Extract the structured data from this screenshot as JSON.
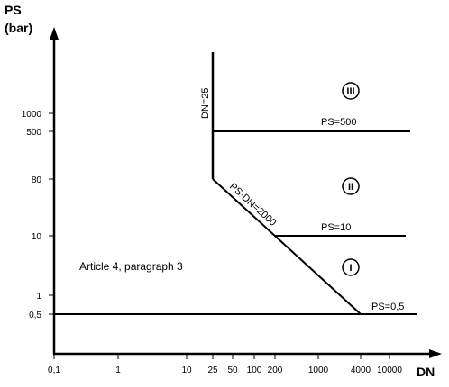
{
  "chart_data": {
    "type": "line",
    "x_axis_label": "DN",
    "y_axis_label_line1": "PS",
    "y_axis_label_line2": "(bar)",
    "x_scale": "log",
    "y_scale": "log",
    "x_ticks": [
      "0,1",
      "1",
      "10",
      "25",
      "50",
      "100",
      "200",
      "1000",
      "4000",
      "10000"
    ],
    "y_ticks": [
      "0,5",
      "1",
      "10",
      "80",
      "500",
      "1000"
    ],
    "boundaries": [
      {
        "label": "PS=0,5",
        "x": [
          0.1,
          20000
        ],
        "y": [
          0.5,
          0.5
        ]
      },
      {
        "label": "PS=10",
        "x": [
          200,
          15000
        ],
        "y": [
          10,
          10
        ]
      },
      {
        "label": "PS=500",
        "x": [
          25,
          15000
        ],
        "y": [
          500,
          500
        ]
      },
      {
        "label": "DN=25",
        "x": [
          25,
          25
        ],
        "y": [
          80,
          5000
        ]
      },
      {
        "label": "PS·DN=2000",
        "x": [
          25,
          4000
        ],
        "y": [
          80,
          0.5
        ]
      }
    ],
    "categories": [
      "I",
      "II",
      "III"
    ],
    "annotation": "Article 4, paragraph 3"
  }
}
